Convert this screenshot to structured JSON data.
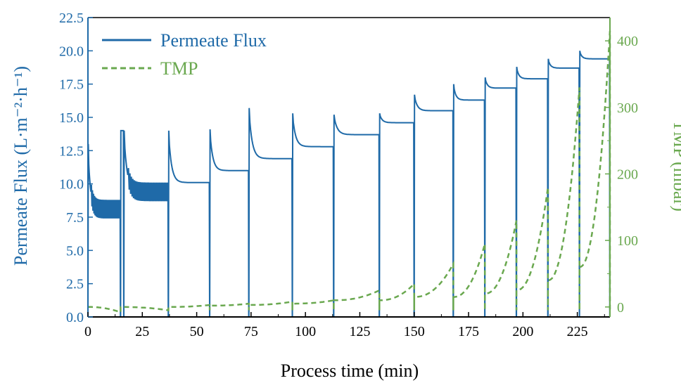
{
  "chart_data": {
    "type": "line",
    "xlabel": "Process time (min)",
    "ylabel_left": "Permeate Flux (L·m⁻²·h⁻¹)",
    "ylabel_right": "TMP (mbar)",
    "xlim": [
      0,
      240
    ],
    "ylim_left": [
      0,
      22.5
    ],
    "ylim_right": [
      -15,
      435
    ],
    "x_ticks": [
      "0",
      "25",
      "50",
      "75",
      "100",
      "125",
      "150",
      "175",
      "200",
      "225"
    ],
    "y_left_ticks": [
      "0.0",
      "2.5",
      "5.0",
      "7.5",
      "10.0",
      "12.5",
      "15.0",
      "17.5",
      "20.0",
      "22.5"
    ],
    "y_right_ticks": [
      "0",
      "100",
      "200",
      "300",
      "400"
    ],
    "legend": {
      "placement": "top-left"
    },
    "colors": {
      "flux": "#1f6aa8",
      "tmp": "#6aa84f"
    },
    "series": [
      {
        "name": "Permeate Flux",
        "axis": "left",
        "style": "solid",
        "cycles": [
          {
            "start": 0,
            "end": 15,
            "peak": 13.0,
            "plateau": 8.0,
            "noisy": true
          },
          {
            "start": 15,
            "end": 16.5,
            "peak": 14.0,
            "plateau": 14.0
          },
          {
            "start": 16.5,
            "end": 37,
            "peak": 14.0,
            "plateau": 9.3,
            "noisy": true
          },
          {
            "start": 37,
            "end": 56,
            "peak": 14.0,
            "plateau": 10.1
          },
          {
            "start": 56,
            "end": 74,
            "peak": 14.1,
            "plateau": 11.0
          },
          {
            "start": 74,
            "end": 94,
            "peak": 15.7,
            "plateau": 11.9
          },
          {
            "start": 94,
            "end": 113,
            "peak": 15.3,
            "plateau": 12.8
          },
          {
            "start": 113,
            "end": 134,
            "peak": 15.2,
            "plateau": 13.7
          },
          {
            "start": 134,
            "end": 150,
            "peak": 15.3,
            "plateau": 14.6
          },
          {
            "start": 150,
            "end": 168,
            "peak": 16.7,
            "plateau": 15.5
          },
          {
            "start": 168,
            "end": 182.5,
            "peak": 17.5,
            "plateau": 16.3
          },
          {
            "start": 182.5,
            "end": 197,
            "peak": 18.0,
            "plateau": 17.2
          },
          {
            "start": 197,
            "end": 211.5,
            "peak": 18.8,
            "plateau": 17.9
          },
          {
            "start": 211.5,
            "end": 226,
            "peak": 19.4,
            "plateau": 18.7
          },
          {
            "start": 226,
            "end": 240,
            "peak": 20.0,
            "plateau": 19.4
          }
        ]
      },
      {
        "name": "TMP",
        "axis": "right",
        "style": "dashed",
        "cycles": [
          {
            "start": 0,
            "end": 15,
            "from": 0,
            "to": -8
          },
          {
            "start": 15,
            "end": 37,
            "from": 0,
            "to": -5
          },
          {
            "start": 37,
            "end": 56,
            "from": 0,
            "to": 3
          },
          {
            "start": 56,
            "end": 74,
            "from": 2,
            "to": 5
          },
          {
            "start": 74,
            "end": 94,
            "from": 3,
            "to": 8
          },
          {
            "start": 94,
            "end": 113,
            "from": 5,
            "to": 10
          },
          {
            "start": 113,
            "end": 134,
            "from": 10,
            "to": 25
          },
          {
            "start": 134,
            "end": 150,
            "from": 10,
            "to": 35
          },
          {
            "start": 150,
            "end": 168,
            "from": 15,
            "to": 65
          },
          {
            "start": 168,
            "end": 182.5,
            "from": 15,
            "to": 95
          },
          {
            "start": 182.5,
            "end": 197,
            "from": 20,
            "to": 130
          },
          {
            "start": 197,
            "end": 211.5,
            "from": 25,
            "to": 180
          },
          {
            "start": 211.5,
            "end": 226,
            "from": 40,
            "to": 330
          },
          {
            "start": 226,
            "end": 240,
            "from": 60,
            "to": 415
          }
        ]
      }
    ]
  }
}
